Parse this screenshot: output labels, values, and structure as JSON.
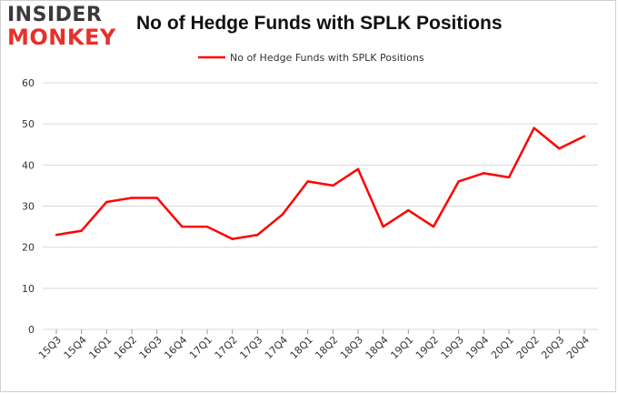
{
  "logo": {
    "line1": "INSIDER",
    "line2": "MONKEY"
  },
  "colors": {
    "line": "#ff0000",
    "grid": "#d9d9d9",
    "logo_red": "#e8302a"
  },
  "chart_data": {
    "type": "line",
    "title": "No of Hedge Funds with SPLK Positions",
    "categories": [
      "15Q3",
      "15Q4",
      "16Q1",
      "16Q2",
      "16Q3",
      "16Q4",
      "17Q1",
      "17Q2",
      "17Q3",
      "17Q4",
      "18Q1",
      "18Q2",
      "18Q3",
      "18Q4",
      "19Q1",
      "19Q2",
      "19Q3",
      "19Q4",
      "20Q1",
      "20Q2",
      "20Q3",
      "20Q4"
    ],
    "series": [
      {
        "name": "No of Hedge Funds with SPLK Positions",
        "values": [
          23,
          24,
          31,
          32,
          32,
          25,
          25,
          22,
          23,
          28,
          36,
          35,
          39,
          25,
          29,
          25,
          36,
          38,
          37,
          49,
          44,
          47
        ]
      }
    ],
    "yticks": [
      0,
      10,
      20,
      30,
      40,
      50,
      60
    ],
    "ylim": [
      0,
      60
    ],
    "grid": true,
    "legend": "top-center"
  }
}
